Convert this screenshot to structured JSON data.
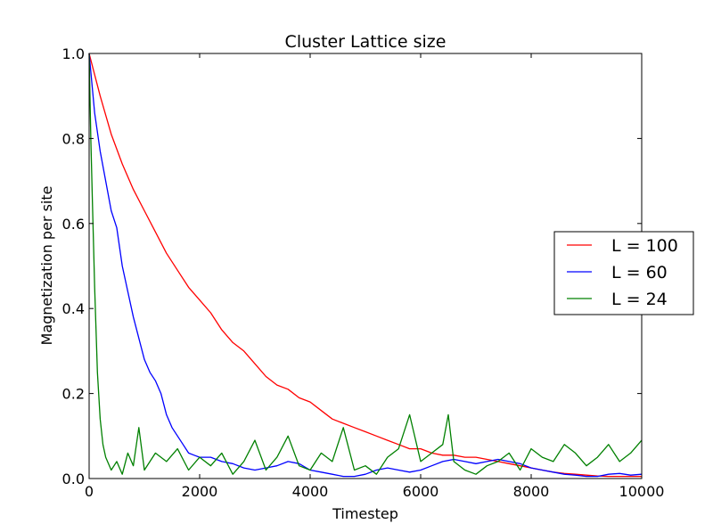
{
  "chart_data": {
    "type": "line",
    "title": "Cluster Lattice size",
    "xlabel": "Timestep",
    "ylabel": "Magnetization per site",
    "xlim": [
      0,
      10000
    ],
    "ylim": [
      0.0,
      1.0
    ],
    "xticks": [
      0,
      2000,
      4000,
      6000,
      8000,
      10000
    ],
    "xtick_labels": [
      "0",
      "2000",
      "4000",
      "6000",
      "8000",
      "10000"
    ],
    "yticks": [
      0.0,
      0.2,
      0.4,
      0.6,
      0.8,
      1.0
    ],
    "ytick_labels": [
      "0.0",
      "0.2",
      "0.4",
      "0.6",
      "0.8",
      "1.0"
    ],
    "grid": false,
    "legend_position": "right",
    "series": [
      {
        "name": "L = 100",
        "color": "#ff0000",
        "x": [
          0,
          200,
          400,
          600,
          800,
          1000,
          1200,
          1400,
          1600,
          1800,
          2000,
          2200,
          2400,
          2600,
          2800,
          3000,
          3200,
          3400,
          3600,
          3800,
          4000,
          4200,
          4400,
          4600,
          4800,
          5000,
          5200,
          5400,
          5600,
          5800,
          6000,
          6200,
          6400,
          6600,
          6800,
          7000,
          7200,
          7400,
          7600,
          7800,
          8000,
          8200,
          8400,
          8600,
          8800,
          9000,
          9200,
          9400,
          9600,
          9800,
          10000
        ],
        "y": [
          1.0,
          0.9,
          0.81,
          0.74,
          0.68,
          0.63,
          0.58,
          0.53,
          0.49,
          0.45,
          0.42,
          0.39,
          0.35,
          0.32,
          0.3,
          0.27,
          0.24,
          0.22,
          0.21,
          0.19,
          0.18,
          0.16,
          0.14,
          0.13,
          0.12,
          0.11,
          0.1,
          0.09,
          0.08,
          0.07,
          0.07,
          0.06,
          0.055,
          0.055,
          0.05,
          0.05,
          0.045,
          0.04,
          0.035,
          0.03,
          0.025,
          0.02,
          0.015,
          0.012,
          0.01,
          0.008,
          0.006,
          0.005,
          0.005,
          0.005,
          0.005
        ]
      },
      {
        "name": "L = 60",
        "color": "#0000ff",
        "x": [
          0,
          100,
          200,
          300,
          400,
          500,
          600,
          700,
          800,
          900,
          1000,
          1100,
          1200,
          1300,
          1400,
          1500,
          1600,
          1700,
          1800,
          1900,
          2000,
          2200,
          2400,
          2600,
          2800,
          3000,
          3200,
          3400,
          3600,
          3800,
          4000,
          4200,
          4400,
          4600,
          4800,
          5000,
          5200,
          5400,
          5600,
          5800,
          6000,
          6200,
          6400,
          6600,
          6800,
          7000,
          7200,
          7400,
          7600,
          7800,
          8000,
          8200,
          8400,
          8600,
          8800,
          9000,
          9200,
          9400,
          9600,
          9800,
          10000
        ],
        "y": [
          1.0,
          0.86,
          0.77,
          0.7,
          0.63,
          0.59,
          0.5,
          0.44,
          0.38,
          0.33,
          0.28,
          0.25,
          0.23,
          0.2,
          0.15,
          0.12,
          0.1,
          0.08,
          0.06,
          0.055,
          0.05,
          0.05,
          0.04,
          0.035,
          0.025,
          0.02,
          0.025,
          0.03,
          0.04,
          0.035,
          0.02,
          0.015,
          0.01,
          0.005,
          0.005,
          0.01,
          0.02,
          0.025,
          0.02,
          0.015,
          0.02,
          0.03,
          0.04,
          0.045,
          0.04,
          0.035,
          0.04,
          0.045,
          0.04,
          0.035,
          0.025,
          0.02,
          0.015,
          0.01,
          0.008,
          0.005,
          0.005,
          0.01,
          0.012,
          0.008,
          0.01
        ]
      },
      {
        "name": "L = 24",
        "color": "#008000",
        "x": [
          0,
          30,
          60,
          100,
          150,
          200,
          250,
          300,
          400,
          500,
          600,
          700,
          800,
          900,
          1000,
          1200,
          1400,
          1600,
          1800,
          2000,
          2200,
          2400,
          2600,
          2800,
          3000,
          3200,
          3400,
          3600,
          3800,
          4000,
          4200,
          4400,
          4600,
          4800,
          5000,
          5200,
          5400,
          5600,
          5800,
          6000,
          6200,
          6400,
          6500,
          6600,
          6800,
          7000,
          7200,
          7400,
          7600,
          7800,
          8000,
          8200,
          8400,
          8600,
          8800,
          9000,
          9200,
          9400,
          9600,
          9800,
          10000
        ],
        "y": [
          1.0,
          0.8,
          0.65,
          0.45,
          0.25,
          0.14,
          0.08,
          0.05,
          0.02,
          0.04,
          0.01,
          0.06,
          0.03,
          0.12,
          0.02,
          0.06,
          0.04,
          0.07,
          0.02,
          0.05,
          0.03,
          0.06,
          0.01,
          0.04,
          0.09,
          0.02,
          0.05,
          0.1,
          0.03,
          0.02,
          0.06,
          0.04,
          0.12,
          0.02,
          0.03,
          0.01,
          0.05,
          0.07,
          0.15,
          0.04,
          0.06,
          0.08,
          0.15,
          0.04,
          0.02,
          0.01,
          0.03,
          0.04,
          0.06,
          0.02,
          0.07,
          0.05,
          0.04,
          0.08,
          0.06,
          0.03,
          0.05,
          0.08,
          0.04,
          0.06,
          0.09
        ]
      }
    ]
  }
}
